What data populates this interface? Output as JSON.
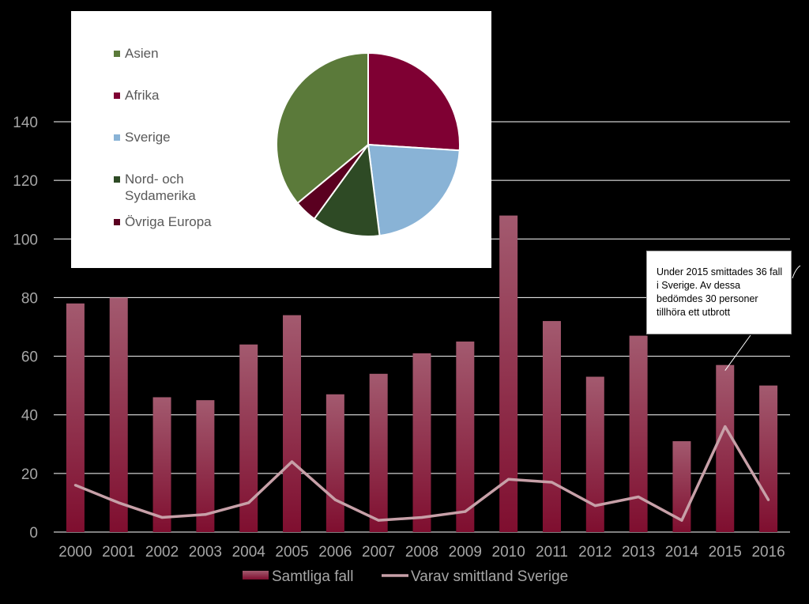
{
  "chart_data": [
    {
      "type": "bar+line",
      "categories": [
        "2000",
        "2001",
        "2002",
        "2003",
        "2004",
        "2005",
        "2006",
        "2007",
        "2008",
        "2009",
        "2010",
        "2011",
        "2012",
        "2013",
        "2014",
        "2015",
        "2016"
      ],
      "series": [
        {
          "name": "Samtliga fall",
          "type": "bar",
          "values": [
            78,
            80,
            46,
            45,
            64,
            74,
            47,
            54,
            61,
            65,
            108,
            72,
            53,
            67,
            31,
            57,
            50
          ]
        },
        {
          "name": "Varav smittland Sverige",
          "type": "line",
          "values": [
            16,
            10,
            5,
            6,
            10,
            24,
            11,
            4,
            5,
            7,
            18,
            17,
            9,
            12,
            4,
            36,
            11
          ]
        }
      ],
      "ylim": [
        0,
        140
      ],
      "yticks": [
        0,
        20,
        40,
        60,
        80,
        100,
        120,
        140
      ],
      "grid": true,
      "legend": "bottom",
      "annotation": {
        "text": "Under 2015 smittades 36 fall i Sverige. Av dessa bedömdes 30 personer tillhöra ett utbrott",
        "target_category": "2015"
      },
      "colors": {
        "bar": "#7f0e2f",
        "bar_light": "#a35a6f",
        "line": "#c7a0a8",
        "grid": "#ffffff",
        "text": "#a6a6a6"
      }
    },
    {
      "type": "pie",
      "labels": [
        "Asien",
        "Afrika",
        "Sverige",
        "Nord- och\nSydamerika",
        "Övriga Europa"
      ],
      "values": [
        36,
        26,
        22,
        12,
        4
      ],
      "colors": [
        "#5b7a3a",
        "#7f0033",
        "#89b3d6",
        "#2e4a25",
        "#5a0020"
      ],
      "legend": "left"
    }
  ]
}
